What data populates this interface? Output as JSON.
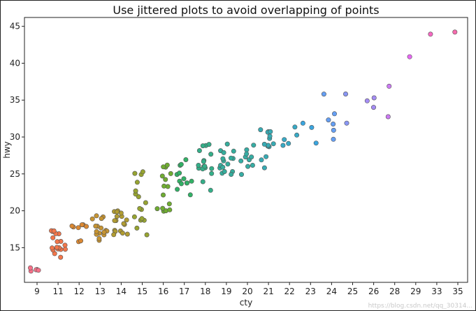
{
  "chart_data": {
    "type": "scatter",
    "title": "Use jittered plots to avoid overlapping of points",
    "xlabel": "cty",
    "ylabel": "hwy",
    "x_categories": [
      "9",
      "11",
      "12",
      "13",
      "14",
      "15",
      "16",
      "17",
      "18",
      "19",
      "20",
      "21",
      "22",
      "23",
      "24",
      "25",
      "26",
      "28",
      "29",
      "33",
      "35"
    ],
    "ylim": [
      10.3,
      46.2
    ],
    "yticks": [
      15,
      20,
      25,
      30,
      35,
      40,
      45
    ],
    "grid": false,
    "legend": "none",
    "colors": {
      "9": "#f77189",
      "11": "#f3764a",
      "12": "#dc8932",
      "13": "#c69432",
      "14": "#b19c31",
      "15": "#97a431",
      "16": "#6fac31",
      "17": "#32b166",
      "18": "#34af89",
      "19": "#35ad9c",
      "20": "#36ada4",
      "21": "#37abb4",
      "22": "#38a9c5",
      "23": "#3aa5df",
      "24": "#659ff4",
      "25": "#8896f4",
      "26": "#a48cf4",
      "28": "#cc7af4",
      "29": "#e867f4",
      "33": "#f668c2",
      "35": "#f66bad"
    },
    "points": [
      {
        "x": "9",
        "y": [
          12,
          12,
          12,
          12,
          12
        ]
      },
      {
        "x": "11",
        "y": [
          14,
          14,
          15,
          15,
          15,
          15,
          15,
          15,
          15,
          15,
          16,
          16,
          16,
          17,
          17,
          17,
          17,
          17
        ]
      },
      {
        "x": "12",
        "y": [
          16,
          16,
          18,
          18,
          18,
          18,
          18,
          18
        ]
      },
      {
        "x": "13",
        "y": [
          16,
          16,
          17,
          17,
          17,
          17,
          17,
          17,
          17,
          18,
          18,
          18,
          19,
          19,
          19,
          19
        ]
      },
      {
        "x": "14",
        "y": [
          17,
          17,
          17,
          17,
          17,
          17,
          18,
          18,
          19,
          19,
          19,
          19,
          19,
          20,
          20,
          20,
          20
        ]
      },
      {
        "x": "15",
        "y": [
          17,
          18,
          19,
          19,
          19,
          19,
          20,
          20,
          21,
          22,
          22,
          23,
          24,
          25,
          25,
          25
        ]
      },
      {
        "x": "16",
        "y": [
          20,
          20,
          20,
          20,
          20,
          21,
          22,
          23,
          23,
          24,
          25,
          25,
          26,
          26,
          26
        ]
      },
      {
        "x": "17",
        "y": [
          22,
          23,
          24,
          24,
          24,
          24,
          24,
          24,
          25,
          25,
          26,
          26,
          27
        ]
      },
      {
        "x": "18",
        "y": [
          23,
          24,
          25,
          26,
          26,
          26,
          26,
          26,
          26,
          26,
          27,
          27,
          28,
          28,
          29,
          29,
          29
        ]
      },
      {
        "x": "19",
        "y": [
          25,
          25,
          25,
          25,
          26,
          26,
          26,
          26,
          27,
          27,
          27,
          27,
          28,
          28,
          28,
          29
        ]
      },
      {
        "x": "20",
        "y": [
          25,
          26,
          26,
          27,
          27,
          27,
          27,
          28,
          28,
          29
        ]
      },
      {
        "x": "21",
        "y": [
          26,
          27,
          27,
          29,
          29,
          29,
          29,
          29,
          30,
          30,
          31,
          31,
          31,
          31
        ]
      },
      {
        "x": "22",
        "y": [
          29,
          29,
          30,
          30,
          31
        ]
      },
      {
        "x": "23",
        "y": [
          29,
          31,
          32
        ]
      },
      {
        "x": "24",
        "y": [
          30,
          31,
          32,
          32,
          33,
          36
        ]
      },
      {
        "x": "25",
        "y": [
          32,
          36
        ]
      },
      {
        "x": "26",
        "y": [
          34,
          35,
          35
        ]
      },
      {
        "x": "28",
        "y": [
          33,
          37
        ]
      },
      {
        "x": "29",
        "y": [
          41
        ]
      },
      {
        "x": "33",
        "y": [
          44
        ]
      },
      {
        "x": "35",
        "y": [
          44
        ]
      }
    ],
    "watermark": "https://blog.csdn.net/qq_30314..."
  }
}
